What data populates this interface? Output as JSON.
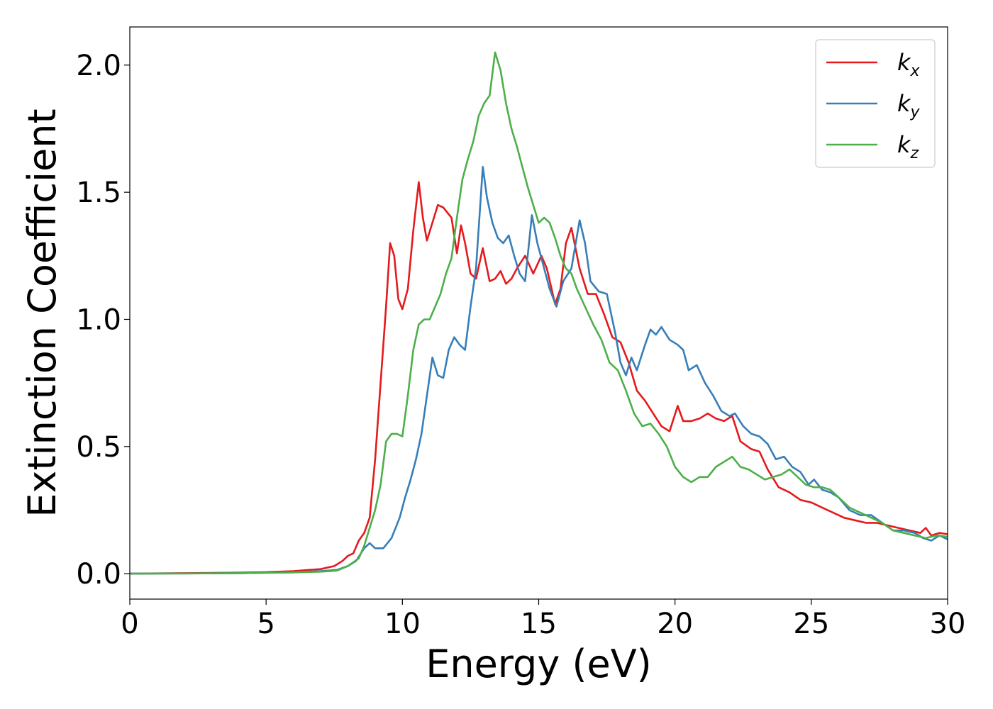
{
  "chart_data": {
    "type": "line",
    "title": "",
    "xlabel": "Energy (eV)",
    "ylabel": "Extinction Coefficient",
    "xlim": [
      0,
      30
    ],
    "ylim": [
      -0.1,
      2.15
    ],
    "xticks": [
      0,
      5,
      10,
      15,
      20,
      25,
      30
    ],
    "xtick_labels": [
      "0",
      "5",
      "10",
      "15",
      "20",
      "25",
      "30"
    ],
    "yticks": [
      0.0,
      0.5,
      1.0,
      1.5,
      2.0
    ],
    "ytick_labels": [
      "0.0",
      "0.5",
      "1.0",
      "1.5",
      "2.0"
    ],
    "grid": false,
    "legend_position": "top-right",
    "series": [
      {
        "name": "k",
        "subscript": "x",
        "color": "#e41a1c",
        "points": [
          [
            0,
            0
          ],
          [
            2,
            0.002
          ],
          [
            4,
            0.004
          ],
          [
            5,
            0.006
          ],
          [
            6,
            0.01
          ],
          [
            6.5,
            0.014
          ],
          [
            7,
            0.018
          ],
          [
            7.5,
            0.03
          ],
          [
            7.8,
            0.05
          ],
          [
            8,
            0.07
          ],
          [
            8.2,
            0.08
          ],
          [
            8.4,
            0.13
          ],
          [
            8.6,
            0.16
          ],
          [
            8.8,
            0.22
          ],
          [
            9.0,
            0.45
          ],
          [
            9.2,
            0.75
          ],
          [
            9.4,
            1.05
          ],
          [
            9.55,
            1.3
          ],
          [
            9.7,
            1.25
          ],
          [
            9.85,
            1.08
          ],
          [
            10.0,
            1.04
          ],
          [
            10.2,
            1.12
          ],
          [
            10.4,
            1.35
          ],
          [
            10.6,
            1.54
          ],
          [
            10.75,
            1.4
          ],
          [
            10.9,
            1.31
          ],
          [
            11.1,
            1.38
          ],
          [
            11.3,
            1.45
          ],
          [
            11.5,
            1.44
          ],
          [
            11.8,
            1.4
          ],
          [
            12.0,
            1.26
          ],
          [
            12.15,
            1.37
          ],
          [
            12.3,
            1.3
          ],
          [
            12.5,
            1.18
          ],
          [
            12.7,
            1.16
          ],
          [
            12.95,
            1.28
          ],
          [
            13.2,
            1.15
          ],
          [
            13.4,
            1.16
          ],
          [
            13.6,
            1.19
          ],
          [
            13.8,
            1.14
          ],
          [
            14.0,
            1.16
          ],
          [
            14.2,
            1.2
          ],
          [
            14.5,
            1.25
          ],
          [
            14.8,
            1.18
          ],
          [
            15.1,
            1.25
          ],
          [
            15.3,
            1.2
          ],
          [
            15.6,
            1.06
          ],
          [
            15.8,
            1.12
          ],
          [
            16.0,
            1.3
          ],
          [
            16.2,
            1.36
          ],
          [
            16.5,
            1.2
          ],
          [
            16.8,
            1.1
          ],
          [
            17.1,
            1.1
          ],
          [
            17.4,
            1.02
          ],
          [
            17.7,
            0.93
          ],
          [
            18.0,
            0.91
          ],
          [
            18.3,
            0.83
          ],
          [
            18.6,
            0.72
          ],
          [
            18.9,
            0.68
          ],
          [
            19.2,
            0.63
          ],
          [
            19.5,
            0.58
          ],
          [
            19.8,
            0.56
          ],
          [
            20.1,
            0.66
          ],
          [
            20.3,
            0.6
          ],
          [
            20.6,
            0.6
          ],
          [
            20.9,
            0.61
          ],
          [
            21.2,
            0.63
          ],
          [
            21.5,
            0.61
          ],
          [
            21.8,
            0.6
          ],
          [
            22.1,
            0.62
          ],
          [
            22.4,
            0.52
          ],
          [
            22.8,
            0.49
          ],
          [
            23.1,
            0.48
          ],
          [
            23.4,
            0.41
          ],
          [
            23.8,
            0.34
          ],
          [
            24.2,
            0.32
          ],
          [
            24.6,
            0.29
          ],
          [
            25.0,
            0.28
          ],
          [
            25.4,
            0.26
          ],
          [
            25.8,
            0.24
          ],
          [
            26.2,
            0.22
          ],
          [
            26.6,
            0.21
          ],
          [
            27.0,
            0.2
          ],
          [
            27.4,
            0.2
          ],
          [
            27.8,
            0.19
          ],
          [
            28.2,
            0.18
          ],
          [
            28.6,
            0.17
          ],
          [
            29.0,
            0.16
          ],
          [
            29.2,
            0.18
          ],
          [
            29.4,
            0.15
          ],
          [
            29.7,
            0.16
          ],
          [
            30,
            0.155
          ]
        ]
      },
      {
        "name": "k",
        "subscript": "y",
        "color": "#377eb8",
        "points": [
          [
            0,
            0
          ],
          [
            2,
            0.001
          ],
          [
            4,
            0.002
          ],
          [
            6,
            0.005
          ],
          [
            7,
            0.01
          ],
          [
            7.6,
            0.015
          ],
          [
            8.0,
            0.03
          ],
          [
            8.3,
            0.05
          ],
          [
            8.6,
            0.1
          ],
          [
            8.8,
            0.12
          ],
          [
            9.0,
            0.1
          ],
          [
            9.3,
            0.1
          ],
          [
            9.6,
            0.14
          ],
          [
            9.9,
            0.22
          ],
          [
            10.1,
            0.3
          ],
          [
            10.3,
            0.37
          ],
          [
            10.5,
            0.45
          ],
          [
            10.7,
            0.55
          ],
          [
            10.9,
            0.7
          ],
          [
            11.1,
            0.85
          ],
          [
            11.3,
            0.78
          ],
          [
            11.5,
            0.77
          ],
          [
            11.7,
            0.88
          ],
          [
            11.9,
            0.93
          ],
          [
            12.1,
            0.9
          ],
          [
            12.3,
            0.88
          ],
          [
            12.5,
            1.05
          ],
          [
            12.7,
            1.2
          ],
          [
            12.95,
            1.6
          ],
          [
            13.1,
            1.48
          ],
          [
            13.3,
            1.38
          ],
          [
            13.5,
            1.32
          ],
          [
            13.7,
            1.3
          ],
          [
            13.9,
            1.33
          ],
          [
            14.1,
            1.25
          ],
          [
            14.3,
            1.18
          ],
          [
            14.5,
            1.15
          ],
          [
            14.75,
            1.41
          ],
          [
            14.95,
            1.3
          ],
          [
            15.2,
            1.2
          ],
          [
            15.4,
            1.12
          ],
          [
            15.65,
            1.05
          ],
          [
            15.9,
            1.15
          ],
          [
            16.2,
            1.2
          ],
          [
            16.5,
            1.39
          ],
          [
            16.7,
            1.3
          ],
          [
            16.9,
            1.15
          ],
          [
            17.2,
            1.11
          ],
          [
            17.5,
            1.1
          ],
          [
            17.8,
            0.95
          ],
          [
            18.0,
            0.83
          ],
          [
            18.2,
            0.78
          ],
          [
            18.4,
            0.85
          ],
          [
            18.6,
            0.8
          ],
          [
            18.9,
            0.9
          ],
          [
            19.1,
            0.96
          ],
          [
            19.3,
            0.94
          ],
          [
            19.5,
            0.97
          ],
          [
            19.8,
            0.92
          ],
          [
            20.1,
            0.9
          ],
          [
            20.3,
            0.88
          ],
          [
            20.5,
            0.8
          ],
          [
            20.8,
            0.82
          ],
          [
            21.1,
            0.75
          ],
          [
            21.4,
            0.7
          ],
          [
            21.7,
            0.64
          ],
          [
            22.0,
            0.62
          ],
          [
            22.2,
            0.63
          ],
          [
            22.5,
            0.58
          ],
          [
            22.8,
            0.55
          ],
          [
            23.1,
            0.54
          ],
          [
            23.4,
            0.51
          ],
          [
            23.7,
            0.45
          ],
          [
            24.0,
            0.46
          ],
          [
            24.3,
            0.42
          ],
          [
            24.6,
            0.4
          ],
          [
            24.9,
            0.35
          ],
          [
            25.1,
            0.37
          ],
          [
            25.4,
            0.33
          ],
          [
            25.7,
            0.32
          ],
          [
            26.0,
            0.3
          ],
          [
            26.4,
            0.25
          ],
          [
            26.8,
            0.23
          ],
          [
            27.2,
            0.23
          ],
          [
            27.6,
            0.2
          ],
          [
            28.0,
            0.17
          ],
          [
            28.4,
            0.17
          ],
          [
            28.8,
            0.16
          ],
          [
            29.1,
            0.14
          ],
          [
            29.4,
            0.13
          ],
          [
            29.7,
            0.15
          ],
          [
            30,
            0.135
          ]
        ]
      },
      {
        "name": "k",
        "subscript": "z",
        "color": "#4daf4a",
        "points": [
          [
            0,
            0
          ],
          [
            2,
            0.001
          ],
          [
            4,
            0.002
          ],
          [
            6,
            0.005
          ],
          [
            7,
            0.008
          ],
          [
            7.6,
            0.012
          ],
          [
            8.0,
            0.03
          ],
          [
            8.4,
            0.06
          ],
          [
            8.6,
            0.11
          ],
          [
            8.8,
            0.18
          ],
          [
            9.0,
            0.25
          ],
          [
            9.2,
            0.35
          ],
          [
            9.4,
            0.52
          ],
          [
            9.6,
            0.55
          ],
          [
            9.8,
            0.55
          ],
          [
            10.0,
            0.54
          ],
          [
            10.2,
            0.7
          ],
          [
            10.4,
            0.88
          ],
          [
            10.6,
            0.98
          ],
          [
            10.8,
            1.0
          ],
          [
            11.0,
            1.0
          ],
          [
            11.2,
            1.05
          ],
          [
            11.4,
            1.1
          ],
          [
            11.6,
            1.18
          ],
          [
            11.8,
            1.24
          ],
          [
            12.0,
            1.4
          ],
          [
            12.2,
            1.55
          ],
          [
            12.4,
            1.63
          ],
          [
            12.6,
            1.7
          ],
          [
            12.8,
            1.8
          ],
          [
            13.0,
            1.85
          ],
          [
            13.2,
            1.88
          ],
          [
            13.4,
            2.05
          ],
          [
            13.6,
            1.98
          ],
          [
            13.8,
            1.85
          ],
          [
            14.0,
            1.75
          ],
          [
            14.2,
            1.68
          ],
          [
            14.4,
            1.6
          ],
          [
            14.6,
            1.52
          ],
          [
            14.8,
            1.45
          ],
          [
            15.0,
            1.38
          ],
          [
            15.2,
            1.4
          ],
          [
            15.4,
            1.38
          ],
          [
            15.6,
            1.32
          ],
          [
            15.8,
            1.25
          ],
          [
            16.0,
            1.2
          ],
          [
            16.2,
            1.18
          ],
          [
            16.4,
            1.12
          ],
          [
            16.7,
            1.05
          ],
          [
            17.0,
            0.98
          ],
          [
            17.3,
            0.92
          ],
          [
            17.6,
            0.83
          ],
          [
            17.9,
            0.8
          ],
          [
            18.2,
            0.72
          ],
          [
            18.5,
            0.63
          ],
          [
            18.8,
            0.58
          ],
          [
            19.1,
            0.59
          ],
          [
            19.4,
            0.55
          ],
          [
            19.7,
            0.5
          ],
          [
            20.0,
            0.42
          ],
          [
            20.3,
            0.38
          ],
          [
            20.6,
            0.36
          ],
          [
            20.9,
            0.38
          ],
          [
            21.2,
            0.38
          ],
          [
            21.5,
            0.42
          ],
          [
            21.8,
            0.44
          ],
          [
            22.1,
            0.46
          ],
          [
            22.4,
            0.42
          ],
          [
            22.7,
            0.41
          ],
          [
            23.0,
            0.39
          ],
          [
            23.3,
            0.37
          ],
          [
            23.6,
            0.38
          ],
          [
            23.9,
            0.39
          ],
          [
            24.2,
            0.41
          ],
          [
            24.5,
            0.38
          ],
          [
            24.8,
            0.35
          ],
          [
            25.1,
            0.34
          ],
          [
            25.4,
            0.34
          ],
          [
            25.7,
            0.33
          ],
          [
            26.0,
            0.3
          ],
          [
            26.4,
            0.26
          ],
          [
            26.8,
            0.24
          ],
          [
            27.2,
            0.22
          ],
          [
            27.6,
            0.2
          ],
          [
            28.0,
            0.17
          ],
          [
            28.4,
            0.16
          ],
          [
            28.8,
            0.15
          ],
          [
            29.2,
            0.14
          ],
          [
            29.6,
            0.15
          ],
          [
            30,
            0.145
          ]
        ]
      }
    ]
  }
}
